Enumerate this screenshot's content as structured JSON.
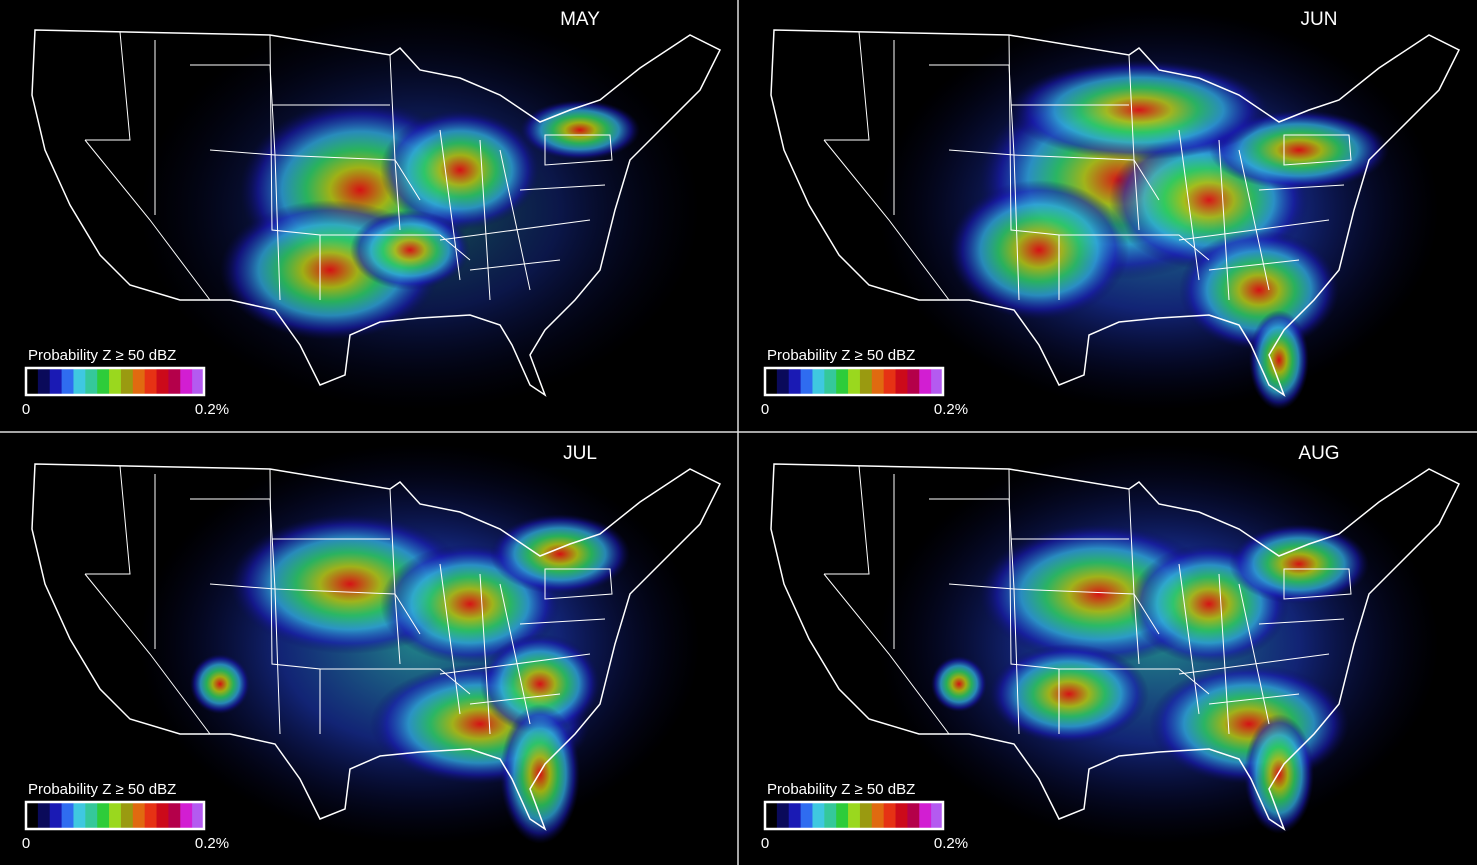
{
  "panels": [
    {
      "title": "MAY"
    },
    {
      "title": "JUN"
    },
    {
      "title": "JUL"
    },
    {
      "title": "AUG"
    }
  ],
  "legend": {
    "title": "Probability Z ≥ 50 dBZ",
    "min_label": "0",
    "max_label": "0.2%",
    "colors": [
      "#000000",
      "#0a0a5a",
      "#1a1ab4",
      "#2f6cf0",
      "#3fc8e0",
      "#35c89a",
      "#2ecc3a",
      "#9ad81e",
      "#9a9a10",
      "#e06a10",
      "#e63214",
      "#cc0a1a",
      "#b4004a",
      "#d21ed2",
      "#b45af0"
    ]
  }
}
